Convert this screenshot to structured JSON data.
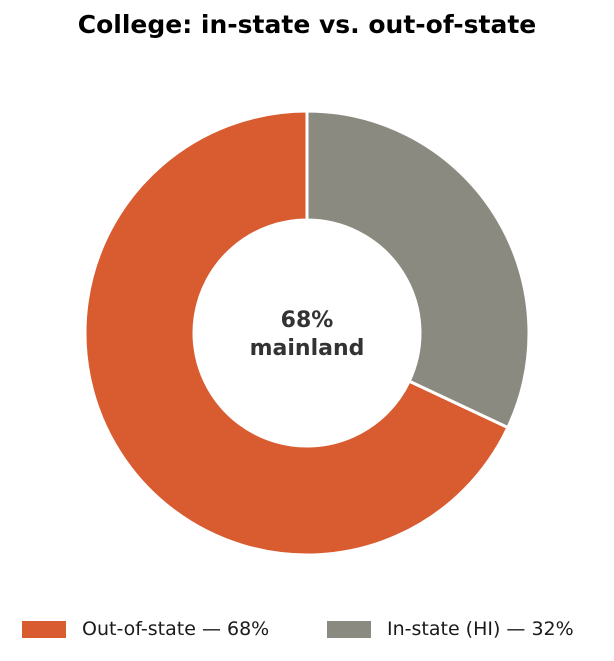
{
  "chart_data": {
    "type": "pie",
    "variant": "donut",
    "title": "College: in-state vs. out-of-state",
    "center_label": {
      "line1": "68%",
      "line2": "mainland"
    },
    "slices": [
      {
        "name": "Out-of-state",
        "value": 68,
        "color": "#D95B30",
        "legend_label": "Out-of-state — 68%"
      },
      {
        "name": "In-state (HI)",
        "value": 32,
        "color": "#8A8A80",
        "legend_label": "In-state (HI) — 32%"
      }
    ],
    "legend_placement": "bottom"
  }
}
